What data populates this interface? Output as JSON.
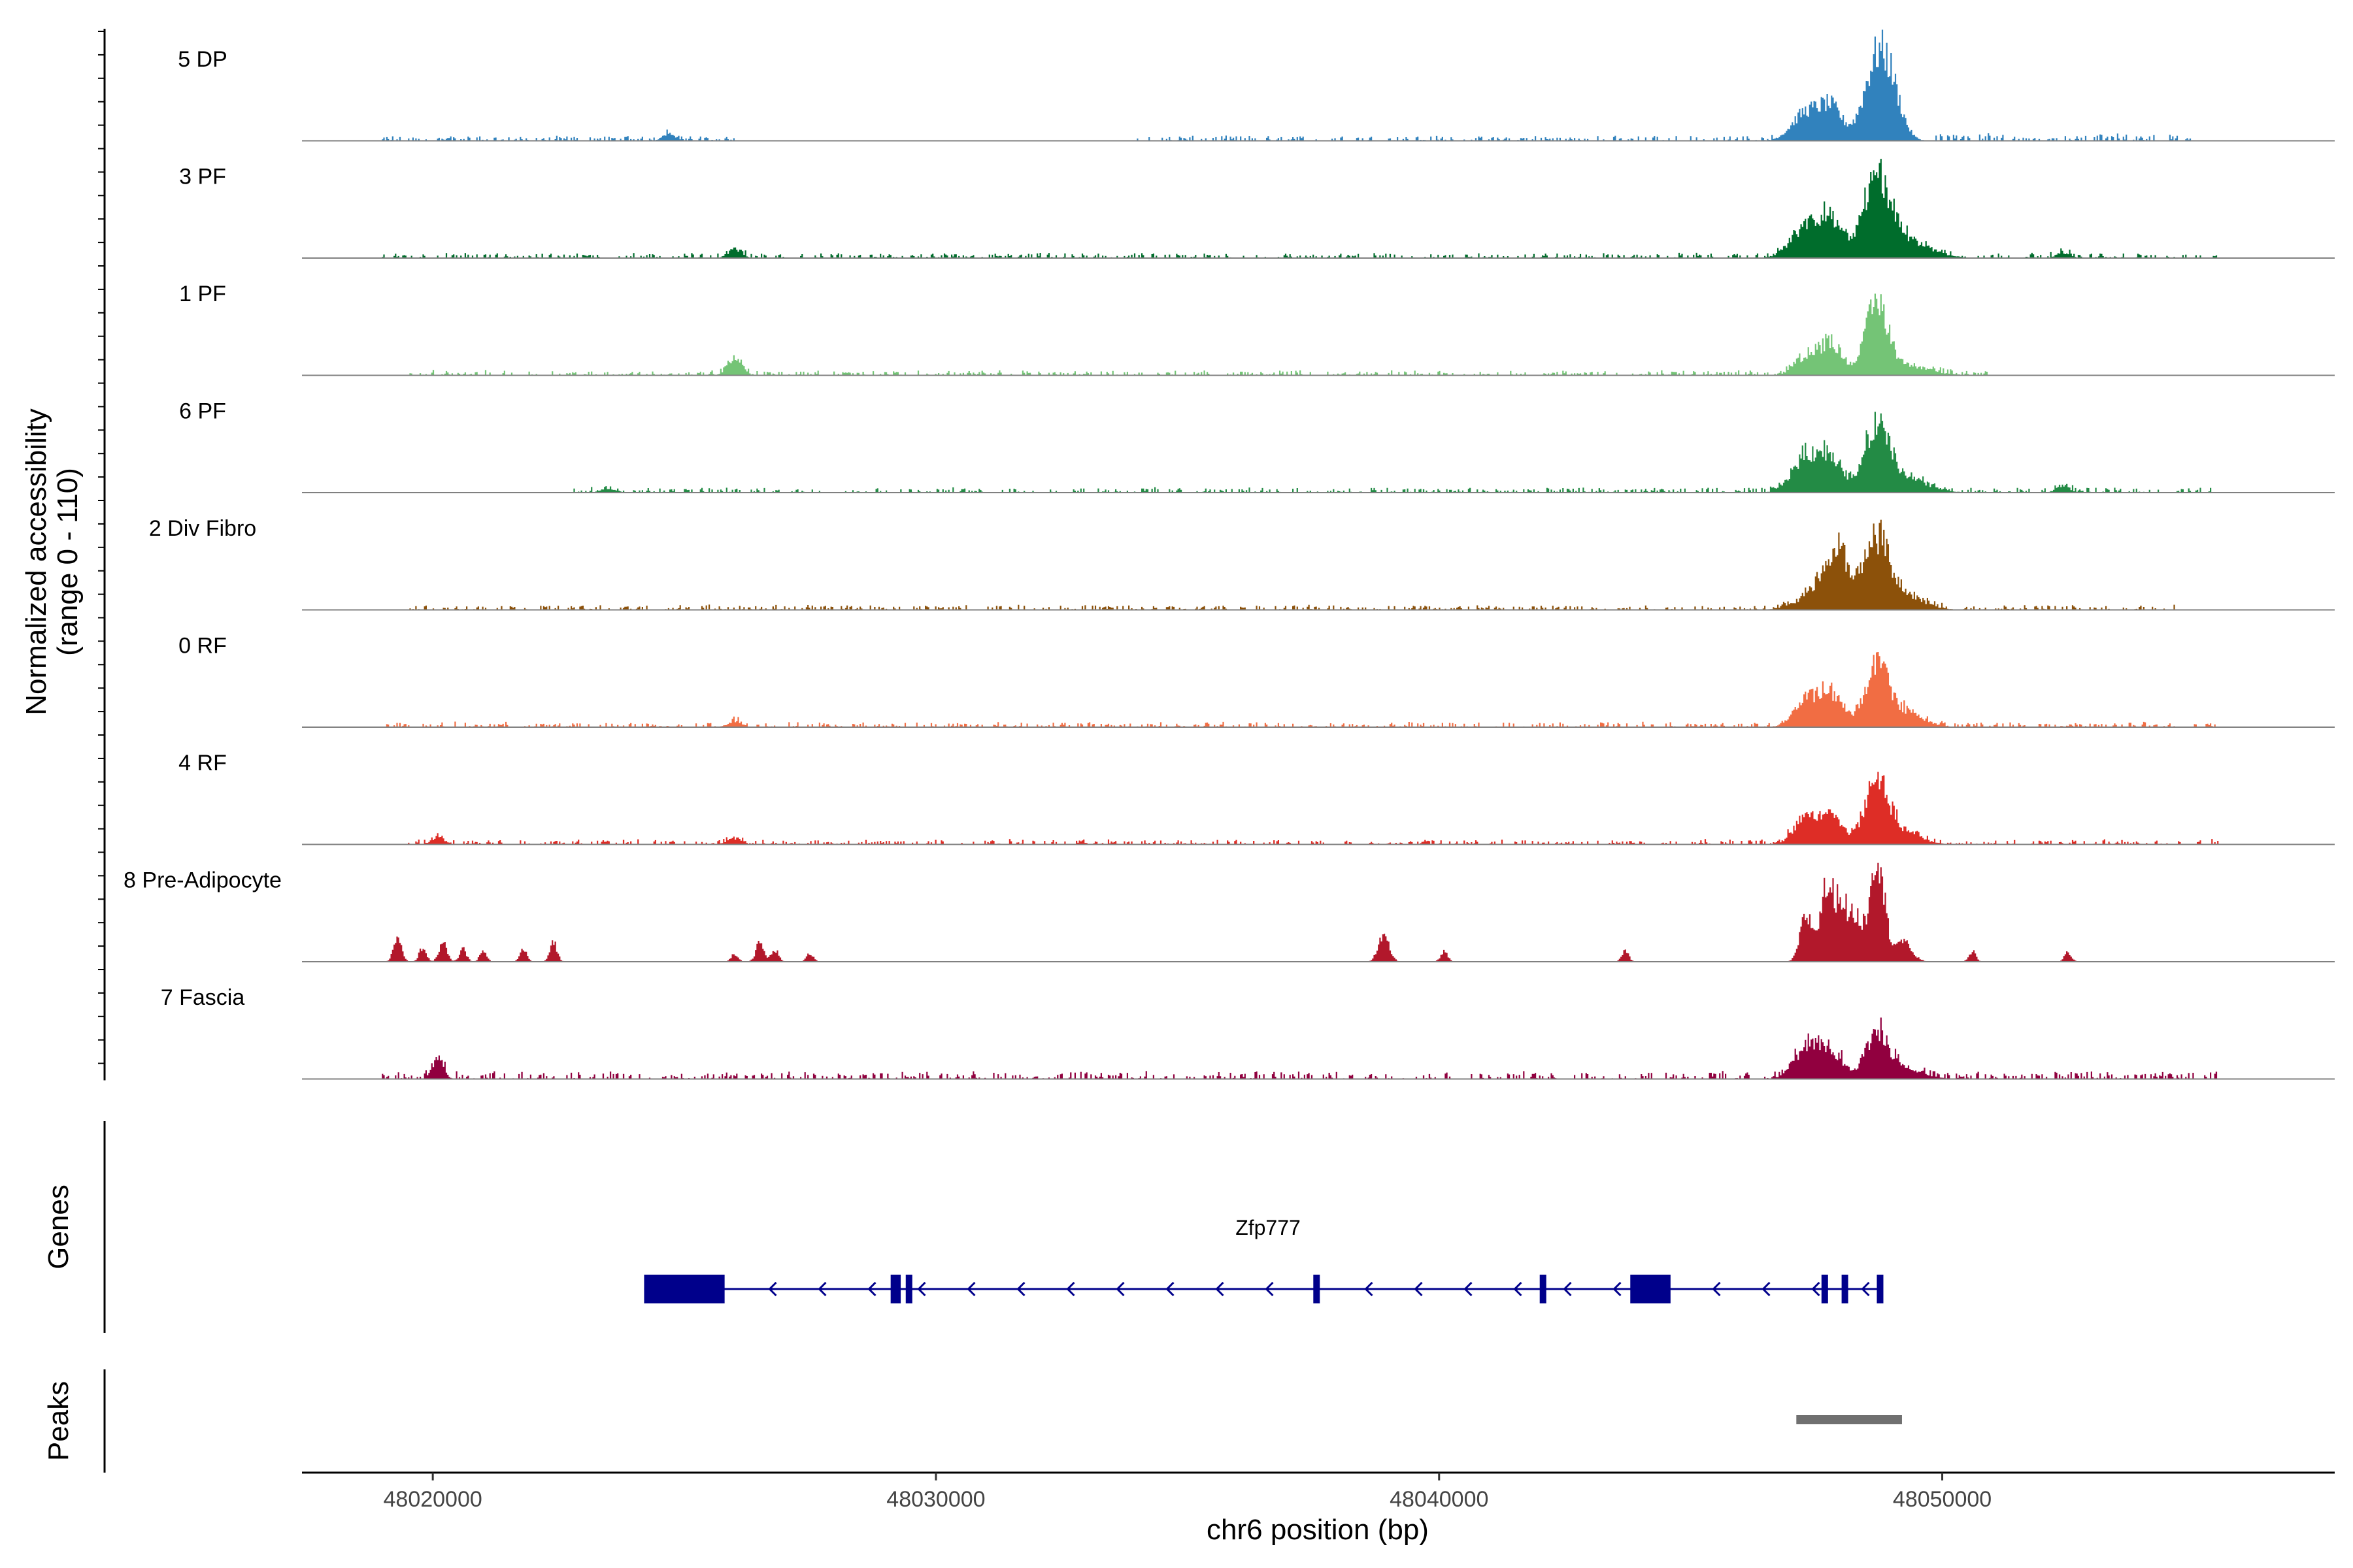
{
  "chart_data": {
    "type": "area",
    "title": "",
    "ylabel_line1": "Normalized accessibility",
    "ylabel_line2": "(range 0 - 110)",
    "ylim": [
      0,
      110
    ],
    "xlabel": "chr6 position (bp)",
    "xlim": [
      48017400,
      48057800
    ],
    "x_ticks": [
      48020000,
      48030000,
      48040000,
      48050000
    ],
    "x_tick_labels": [
      "48020000",
      "48030000",
      "48040000",
      "48050000"
    ],
    "genes_label": "Genes",
    "peaks_label": "Peaks",
    "tracks": [
      {
        "name": "5 DP",
        "color": "#3182bd",
        "peaks": [
          [
            48024700,
            7,
            130
          ],
          [
            48047300,
            28,
            280
          ],
          [
            48047800,
            30,
            220
          ],
          [
            48048700,
            75,
            260
          ],
          [
            48049000,
            30,
            220
          ]
        ],
        "noise": [
          [
            48019000,
            48026000,
            2
          ],
          [
            48034000,
            48046700,
            2
          ],
          [
            48049800,
            48055000,
            3
          ]
        ]
      },
      {
        "name": "3 PF",
        "color": "#006d2c",
        "peaks": [
          [
            48026000,
            9,
            130
          ],
          [
            48047300,
            30,
            300
          ],
          [
            48047800,
            32,
            230
          ],
          [
            48048700,
            70,
            260
          ],
          [
            48049200,
            18,
            500
          ],
          [
            48052400,
            5,
            130
          ]
        ],
        "noise": [
          [
            48019000,
            48055500,
            2
          ]
        ]
      },
      {
        "name": "1 PF",
        "color": "#74c476",
        "peaks": [
          [
            48026000,
            16,
            140
          ],
          [
            48047300,
            18,
            230
          ],
          [
            48047800,
            30,
            230
          ],
          [
            48048700,
            68,
            220
          ],
          [
            48049300,
            9,
            450
          ]
        ],
        "noise": [
          [
            48019500,
            48051000,
            2
          ]
        ]
      },
      {
        "name": "6 PF",
        "color": "#238b45",
        "peaks": [
          [
            48023500,
            4,
            150
          ],
          [
            48047300,
            35,
            280
          ],
          [
            48047800,
            32,
            230
          ],
          [
            48048700,
            60,
            240
          ],
          [
            48049200,
            15,
            450
          ],
          [
            48052400,
            7,
            130
          ]
        ],
        "noise": [
          [
            48022800,
            48055500,
            2
          ]
        ]
      },
      {
        "name": "2 Div Fibro",
        "color": "#8c510a",
        "peaks": [
          [
            48047400,
            12,
            350
          ],
          [
            48047900,
            58,
            260
          ],
          [
            48048700,
            65,
            240
          ],
          [
            48049200,
            14,
            400
          ]
        ],
        "noise": [
          [
            48019500,
            48054800,
            2
          ]
        ]
      },
      {
        "name": "0 RF",
        "color": "#f16d43",
        "peaks": [
          [
            48026000,
            6,
            130
          ],
          [
            48047300,
            26,
            250
          ],
          [
            48047800,
            30,
            230
          ],
          [
            48048700,
            55,
            230
          ],
          [
            48049200,
            15,
            380
          ]
        ],
        "noise": [
          [
            48019000,
            48055500,
            2
          ]
        ]
      },
      {
        "name": "4 RF",
        "color": "#de2d26",
        "peaks": [
          [
            48020100,
            7,
            130
          ],
          [
            48026000,
            6,
            130
          ],
          [
            48047300,
            28,
            230
          ],
          [
            48047800,
            25,
            230
          ],
          [
            48048700,
            60,
            230
          ],
          [
            48049200,
            12,
            350
          ]
        ],
        "noise": [
          [
            48019500,
            48055500,
            2
          ]
        ]
      },
      {
        "name": "8 Pre-Adipocyte",
        "color": "#b2182b",
        "peaks": [
          [
            48019300,
            22,
            80
          ],
          [
            48019800,
            14,
            70
          ],
          [
            48020200,
            18,
            80
          ],
          [
            48020600,
            12,
            70
          ],
          [
            48021000,
            10,
            70
          ],
          [
            48021800,
            12,
            70
          ],
          [
            48022400,
            20,
            70
          ],
          [
            48026000,
            8,
            70
          ],
          [
            48026500,
            18,
            80
          ],
          [
            48026800,
            12,
            70
          ],
          [
            48027500,
            8,
            70
          ],
          [
            48038900,
            24,
            110
          ],
          [
            48040100,
            10,
            70
          ],
          [
            48043700,
            10,
            70
          ],
          [
            48047300,
            45,
            120
          ],
          [
            48047700,
            70,
            130
          ],
          [
            48048000,
            58,
            130
          ],
          [
            48048300,
            40,
            120
          ],
          [
            48048700,
            110,
            140
          ],
          [
            48049200,
            20,
            180
          ],
          [
            48050600,
            10,
            70
          ],
          [
            48052500,
            9,
            70
          ]
        ],
        "noise": []
      },
      {
        "name": "7 Fascia",
        "color": "#91003f",
        "peaks": [
          [
            48020100,
            20,
            110
          ],
          [
            48047300,
            30,
            250
          ],
          [
            48047800,
            25,
            230
          ],
          [
            48048700,
            42,
            230
          ],
          [
            48049200,
            9,
            400
          ]
        ],
        "noise": [
          [
            48019000,
            48055500,
            3
          ]
        ]
      }
    ],
    "gene": {
      "name": "Zfp777",
      "strand": "-",
      "start": 48024200,
      "end": 48048800,
      "exons": [
        [
          48024200,
          48025800
        ],
        [
          48029100,
          48029300
        ],
        [
          48029400,
          48029500
        ],
        [
          48037500,
          48037600
        ],
        [
          48042000,
          48042100
        ],
        [
          48043800,
          48044600
        ],
        [
          48047600,
          48047700
        ],
        [
          48048000,
          48048100
        ],
        [
          48048700,
          48048800
        ]
      ]
    },
    "peaks_track": [
      [
        48047100,
        48049200
      ]
    ]
  }
}
